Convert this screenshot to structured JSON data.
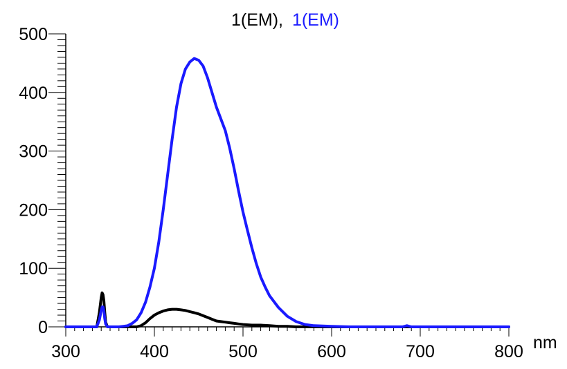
{
  "chart_data": {
    "type": "line",
    "title_parts": [
      {
        "text": "1(EM),",
        "color": "#000000"
      },
      {
        "text": "1(EM)",
        "color": "#1a1aff"
      }
    ],
    "xlabel": "nm",
    "ylabel": "",
    "xlim": [
      300,
      800
    ],
    "ylim": [
      0,
      500
    ],
    "xticks": [
      "300",
      "400",
      "500",
      "600",
      "700",
      "800"
    ],
    "yticks": [
      "0",
      "100",
      "200",
      "300",
      "400",
      "500"
    ],
    "grid": false,
    "series": [
      {
        "color": "#000000",
        "x": [
          300,
          335,
          338,
          340,
          341,
          342,
          343,
          344,
          345,
          347,
          350,
          360,
          370,
          380,
          385,
          390,
          395,
          400,
          405,
          410,
          415,
          420,
          425,
          430,
          435,
          440,
          445,
          450,
          455,
          460,
          465,
          470,
          475,
          480,
          485,
          490,
          495,
          500,
          510,
          520,
          530,
          540,
          550,
          560,
          580,
          600,
          650,
          700,
          800
        ],
        "y": [
          0,
          0,
          25,
          50,
          58,
          55,
          45,
          25,
          8,
          0,
          0,
          0,
          0,
          0,
          2,
          7,
          14,
          20,
          24,
          27,
          29,
          30,
          30,
          29,
          28,
          26,
          24,
          22,
          19,
          16,
          13,
          10,
          9,
          8,
          7,
          6,
          5,
          4,
          3,
          3,
          2,
          1,
          1,
          0,
          0,
          0,
          0,
          0,
          0
        ]
      },
      {
        "color": "#1a1aff",
        "x": [
          300,
          335,
          338,
          340,
          341,
          342,
          343,
          344,
          345,
          347,
          350,
          360,
          365,
          370,
          375,
          380,
          385,
          390,
          395,
          400,
          405,
          410,
          415,
          420,
          425,
          430,
          435,
          440,
          445,
          450,
          455,
          460,
          465,
          470,
          475,
          480,
          485,
          490,
          495,
          500,
          505,
          510,
          515,
          520,
          525,
          530,
          540,
          550,
          560,
          570,
          580,
          600,
          620,
          680,
          685,
          690,
          700,
          800
        ],
        "y": [
          0,
          0,
          12,
          28,
          34,
          34,
          28,
          14,
          5,
          0,
          0,
          0,
          1,
          2,
          6,
          12,
          24,
          42,
          68,
          100,
          145,
          200,
          260,
          320,
          375,
          415,
          440,
          452,
          458,
          455,
          445,
          425,
          400,
          375,
          355,
          335,
          305,
          270,
          232,
          196,
          165,
          135,
          108,
          85,
          68,
          53,
          33,
          18,
          9,
          4,
          2,
          1,
          0,
          0,
          2,
          0,
          0,
          0
        ]
      }
    ]
  }
}
